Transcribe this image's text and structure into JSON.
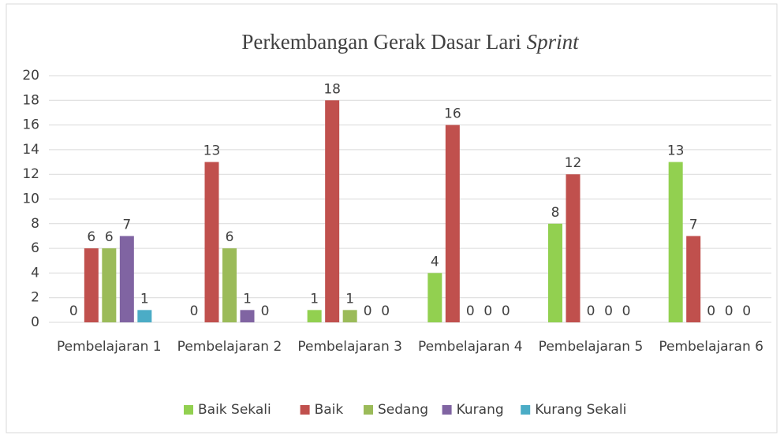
{
  "chart_data": {
    "type": "bar",
    "title": "Perkembangan Gerak Dasar Lari",
    "title_italic": "Sprint",
    "categories": [
      "Pembelajaran 1",
      "Pembelajaran 2",
      "Pembelajaran 3",
      "Pembelajaran 4",
      "Pembelajaran 5",
      "Pembelajaran 6"
    ],
    "series": [
      {
        "name": "Baik Sekali",
        "color": "#92d050",
        "values": [
          0,
          0,
          1,
          4,
          8,
          13
        ]
      },
      {
        "name": "Baik",
        "color": "#c0504d",
        "values": [
          6,
          13,
          18,
          16,
          12,
          7
        ]
      },
      {
        "name": "Sedang",
        "color": "#9bbb59",
        "values": [
          6,
          6,
          1,
          0,
          0,
          0
        ]
      },
      {
        "name": "Kurang",
        "color": "#8064a2",
        "values": [
          7,
          1,
          0,
          0,
          0,
          0
        ]
      },
      {
        "name": "Kurang Sekali",
        "color": "#4bacc6",
        "values": [
          1,
          0,
          0,
          0,
          0,
          0
        ]
      }
    ],
    "ylim": [
      0,
      20
    ],
    "yticks": [
      0,
      2,
      4,
      6,
      8,
      10,
      12,
      14,
      16,
      18,
      20
    ],
    "grid": true,
    "legend": "bottom"
  }
}
